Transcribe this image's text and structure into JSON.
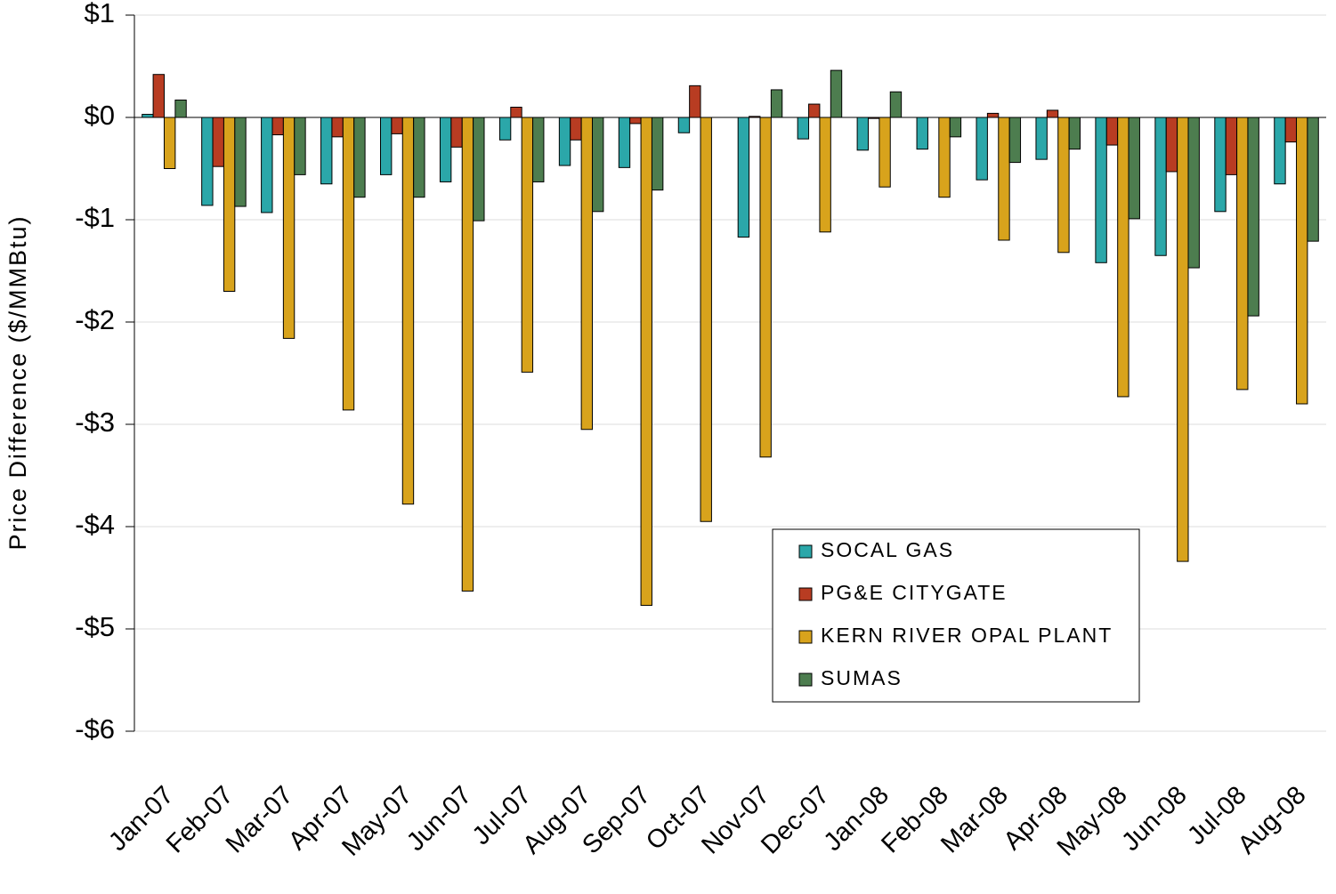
{
  "chart_data": {
    "type": "bar",
    "y_axis_label": "Price Difference  ($/MMBtu)",
    "categories": [
      "Jan-07",
      "Feb-07",
      "Mar-07",
      "Apr-07",
      "May-07",
      "Jun-07",
      "Jul-07",
      "Aug-07",
      "Sep-07",
      "Oct-07",
      "Nov-07",
      "Dec-07",
      "Jan-08",
      "Feb-08",
      "Mar-08",
      "Apr-08",
      "May-08",
      "Jun-08",
      "Jul-08",
      "Aug-08"
    ],
    "series": [
      {
        "name": "SOCAL GAS",
        "color": "#2ba7a9",
        "values": [
          0.03,
          -0.86,
          -0.93,
          -0.65,
          -0.56,
          -0.63,
          -0.22,
          -0.47,
          -0.49,
          -0.15,
          -1.17,
          -0.21,
          -0.32,
          -0.31,
          -0.61,
          -0.41,
          -1.42,
          -1.35,
          -0.92,
          -0.65
        ]
      },
      {
        "name": "PG&E CITYGATE",
        "color": "#b83c22",
        "values": [
          0.42,
          -0.48,
          -0.17,
          -0.19,
          -0.16,
          -0.29,
          0.1,
          -0.22,
          -0.06,
          0.31,
          0.01,
          0.13,
          -0.01,
          0,
          0.04,
          0.07,
          -0.27,
          -0.53,
          -0.56,
          -0.24
        ]
      },
      {
        "name": "KERN RIVER OPAL PLANT",
        "color": "#d8a31c",
        "values": [
          -0.5,
          -1.7,
          -2.16,
          -2.86,
          -3.78,
          -4.63,
          -2.49,
          -3.05,
          -4.77,
          -3.95,
          -3.32,
          -1.12,
          -0.68,
          -0.78,
          -1.2,
          -1.32,
          -2.73,
          -4.34,
          -2.66,
          -2.8
        ]
      },
      {
        "name": "SUMAS",
        "color": "#4d7d4f",
        "values": [
          0.17,
          -0.87,
          -0.56,
          -0.78,
          -0.78,
          -1.01,
          -0.63,
          -0.92,
          -0.71,
          0,
          0.27,
          0.46,
          0.25,
          -0.19,
          -0.44,
          -0.31,
          -0.99,
          -1.47,
          -1.94,
          -1.21
        ]
      }
    ],
    "ylim": [
      -6,
      1
    ],
    "yticks": [
      {
        "value": 1,
        "label": "$1"
      },
      {
        "value": 0,
        "label": "$0"
      },
      {
        "value": -1,
        "label": "-$1"
      },
      {
        "value": -2,
        "label": "-$2"
      },
      {
        "value": -3,
        "label": "-$3"
      },
      {
        "value": -4,
        "label": "-$4"
      },
      {
        "value": -5,
        "label": "-$5"
      },
      {
        "value": -6,
        "label": "-$6"
      }
    ],
    "grid": true
  }
}
